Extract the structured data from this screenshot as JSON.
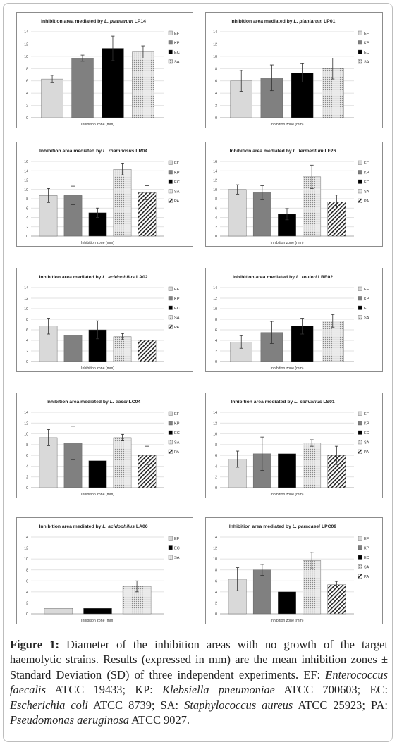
{
  "figure": {
    "caption_label": "Figure 1:",
    "caption_body": " Diameter of the inhibition areas with no growth of the target haemolytic strains. Results (expressed in mm) are the mean inhibition zones ± Standard Deviation (SD) of three independent experiments.",
    "abbreviations": [
      {
        "code": "EF:",
        "species": "Enterococcus faecalis",
        "strain": " ATCC 19433; "
      },
      {
        "code": "KP:",
        "species": "Klebsiella pneumoniae",
        "strain": " ATCC 700603; "
      },
      {
        "code": "EC:",
        "species": "Escherichia coli",
        "strain": " ATCC 8739; "
      },
      {
        "code": "SA:",
        "species": "Staphylococcus aureus",
        "strain": " ATCC 25923; "
      },
      {
        "code": "PA:",
        "species": "Pseudomonas aeruginosa",
        "strain": " ATCC 9027."
      }
    ]
  },
  "series_styles": {
    "EF": {
      "fill": "#d9d9d9",
      "pattern": "none"
    },
    "KP": {
      "fill": "#808080",
      "pattern": "none"
    },
    "EC": {
      "fill": "#000000",
      "pattern": "none"
    },
    "SA": {
      "fill": "#e6e6e6",
      "pattern": "dots"
    },
    "PA": {
      "fill": "#ffffff",
      "pattern": "diagonal"
    }
  },
  "chart_data": [
    {
      "type": "bar",
      "title_prefix": "Inhibition area mediated by ",
      "title_species": "L. plantarum",
      "title_suffix": " LP14",
      "xlabel": "Inhibition zone (mm)",
      "ylim": [
        0,
        14
      ],
      "yticks": [
        0,
        2,
        4,
        6,
        8,
        10,
        12,
        14
      ],
      "legend": [
        "EF",
        "KP",
        "EC",
        "SA"
      ],
      "grid": true,
      "legend_position": "right",
      "series": [
        {
          "name": "EF",
          "value": 6.3,
          "sd": 0.6
        },
        {
          "name": "KP",
          "value": 9.7,
          "sd": 0.5
        },
        {
          "name": "EC",
          "value": 11.3,
          "sd": 2.0
        },
        {
          "name": "SA",
          "value": 10.7,
          "sd": 1.0
        }
      ]
    },
    {
      "type": "bar",
      "title_prefix": "Inhibition area mediated by ",
      "title_species": "L. plantarum",
      "title_suffix": " LP01",
      "xlabel": "Inhibition zone (mm)",
      "ylim": [
        0,
        14
      ],
      "yticks": [
        0,
        2,
        4,
        6,
        8,
        10,
        12,
        14
      ],
      "legend": [
        "EF",
        "KP",
        "EC",
        "SA"
      ],
      "grid": true,
      "legend_position": "right",
      "series": [
        {
          "name": "EF",
          "value": 6.0,
          "sd": 1.7
        },
        {
          "name": "KP",
          "value": 6.5,
          "sd": 2.1
        },
        {
          "name": "EC",
          "value": 7.3,
          "sd": 1.5
        },
        {
          "name": "SA",
          "value": 8.0,
          "sd": 1.7
        }
      ]
    },
    {
      "type": "bar",
      "title_prefix": "Inhibition area mediated by ",
      "title_species": "L. rhamnosus",
      "title_suffix": " LR04",
      "xlabel": "Inhibition zone (mm)",
      "ylim": [
        0,
        16
      ],
      "yticks": [
        0,
        2,
        4,
        6,
        8,
        10,
        12,
        14,
        16
      ],
      "legend": [
        "EF",
        "KP",
        "EC",
        "SA",
        "PA"
      ],
      "grid": true,
      "legend_position": "right",
      "series": [
        {
          "name": "EF",
          "value": 8.7,
          "sd": 1.5
        },
        {
          "name": "KP",
          "value": 8.7,
          "sd": 2.0
        },
        {
          "name": "EC",
          "value": 5.0,
          "sd": 1.0
        },
        {
          "name": "SA",
          "value": 14.3,
          "sd": 1.2
        },
        {
          "name": "PA",
          "value": 9.3,
          "sd": 1.5
        }
      ]
    },
    {
      "type": "bar",
      "title_prefix": "Inhibition area mediated by ",
      "title_species": "L. fermentum",
      "title_suffix": " LF26",
      "xlabel": "Inhibition zone (mm)",
      "ylim": [
        0,
        16
      ],
      "yticks": [
        0,
        2,
        4,
        6,
        8,
        10,
        12,
        14,
        16
      ],
      "legend": [
        "EF",
        "KP",
        "EC",
        "SA",
        "PA"
      ],
      "grid": true,
      "legend_position": "right",
      "series": [
        {
          "name": "EF",
          "value": 10.0,
          "sd": 1.0
        },
        {
          "name": "KP",
          "value": 9.3,
          "sd": 1.5
        },
        {
          "name": "EC",
          "value": 4.7,
          "sd": 1.2
        },
        {
          "name": "SA",
          "value": 12.7,
          "sd": 2.5
        },
        {
          "name": "PA",
          "value": 7.3,
          "sd": 1.5
        }
      ]
    },
    {
      "type": "bar",
      "title_prefix": "Inhibition area mediated by ",
      "title_species": "L. acidophilus",
      "title_suffix": " LA02",
      "xlabel": "Inhibition zone (mm)",
      "ylim": [
        0,
        14
      ],
      "yticks": [
        0,
        2,
        4,
        6,
        8,
        10,
        12,
        14
      ],
      "legend": [
        "EF",
        "KP",
        "EC",
        "SA",
        "PA"
      ],
      "grid": true,
      "legend_position": "right",
      "series": [
        {
          "name": "EF",
          "value": 6.7,
          "sd": 1.5
        },
        {
          "name": "KP",
          "value": 5.0,
          "sd": 0
        },
        {
          "name": "EC",
          "value": 6.0,
          "sd": 1.7
        },
        {
          "name": "SA",
          "value": 4.7,
          "sd": 0.6
        },
        {
          "name": "PA",
          "value": 4.0,
          "sd": 0
        }
      ]
    },
    {
      "type": "bar",
      "title_prefix": "Inhibition area mediated by ",
      "title_species": "L. reuteri",
      "title_suffix": " LRE02",
      "xlabel": "Inhibition zone (mm)",
      "ylim": [
        0,
        14
      ],
      "yticks": [
        0,
        2,
        4,
        6,
        8,
        10,
        12,
        14
      ],
      "legend": [
        "EF",
        "KP",
        "EC",
        "SA"
      ],
      "grid": true,
      "legend_position": "right",
      "series": [
        {
          "name": "EF",
          "value": 3.7,
          "sd": 1.2
        },
        {
          "name": "KP",
          "value": 5.5,
          "sd": 2.1
        },
        {
          "name": "EC",
          "value": 6.7,
          "sd": 1.5
        },
        {
          "name": "SA",
          "value": 7.7,
          "sd": 1.2
        }
      ]
    },
    {
      "type": "bar",
      "title_prefix": "Inhibition area mediated by ",
      "title_species": "L. casei",
      "title_suffix": " LC04",
      "xlabel": "Inhibition zone (mm)",
      "ylim": [
        0,
        14
      ],
      "yticks": [
        0,
        2,
        4,
        6,
        8,
        10,
        12,
        14
      ],
      "legend": [
        "EF",
        "KP",
        "EC",
        "SA",
        "PA"
      ],
      "grid": true,
      "legend_position": "right",
      "series": [
        {
          "name": "EF",
          "value": 9.3,
          "sd": 1.5
        },
        {
          "name": "KP",
          "value": 8.3,
          "sd": 3.1
        },
        {
          "name": "EC",
          "value": 5.0,
          "sd": 0
        },
        {
          "name": "SA",
          "value": 9.3,
          "sd": 0.6
        },
        {
          "name": "PA",
          "value": 6.0,
          "sd": 1.7
        }
      ]
    },
    {
      "type": "bar",
      "title_prefix": "Inhibition area mediated by ",
      "title_species": "L. salivarius",
      "title_suffix": " LS01",
      "xlabel": "Inhibition zone (mm)",
      "ylim": [
        0,
        14
      ],
      "yticks": [
        0,
        2,
        4,
        6,
        8,
        10,
        12,
        14
      ],
      "legend": [
        "EF",
        "KP",
        "EC",
        "SA",
        "PA"
      ],
      "grid": true,
      "legend_position": "right",
      "series": [
        {
          "name": "EF",
          "value": 5.3,
          "sd": 1.5
        },
        {
          "name": "KP",
          "value": 6.3,
          "sd": 3.1
        },
        {
          "name": "EC",
          "value": 6.3,
          "sd": 0
        },
        {
          "name": "SA",
          "value": 8.3,
          "sd": 0.6
        },
        {
          "name": "PA",
          "value": 6.0,
          "sd": 1.7
        }
      ]
    },
    {
      "type": "bar",
      "title_prefix": "Inhibition area mediated by ",
      "title_species": "L. acidophilus",
      "title_suffix": " LA06",
      "xlabel": "Inhibition zone (mm)",
      "ylim": [
        0,
        14
      ],
      "yticks": [
        0,
        2,
        4,
        6,
        8,
        10,
        12,
        14
      ],
      "legend": [
        "EF",
        "EC",
        "SA"
      ],
      "grid": true,
      "legend_position": "right",
      "series": [
        {
          "name": "EF",
          "value": 1.0,
          "sd": 0
        },
        {
          "name": "EC",
          "value": 1.0,
          "sd": 0
        },
        {
          "name": "SA",
          "value": 5.0,
          "sd": 1.0
        }
      ]
    },
    {
      "type": "bar",
      "title_prefix": "Inhibition area mediated by ",
      "title_species": "L. paracasei",
      "title_suffix": " LPC09",
      "xlabel": "Inhibition zone (mm)",
      "ylim": [
        0,
        14
      ],
      "yticks": [
        0,
        2,
        4,
        6,
        8,
        10,
        12,
        14
      ],
      "legend": [
        "EF",
        "KP",
        "EC",
        "SA",
        "PA"
      ],
      "grid": true,
      "legend_position": "right",
      "series": [
        {
          "name": "EF",
          "value": 6.3,
          "sd": 2.1
        },
        {
          "name": "KP",
          "value": 8.0,
          "sd": 1.0
        },
        {
          "name": "EC",
          "value": 4.0,
          "sd": 0
        },
        {
          "name": "SA",
          "value": 9.7,
          "sd": 1.5
        },
        {
          "name": "PA",
          "value": 5.3,
          "sd": 0.6
        }
      ]
    }
  ]
}
